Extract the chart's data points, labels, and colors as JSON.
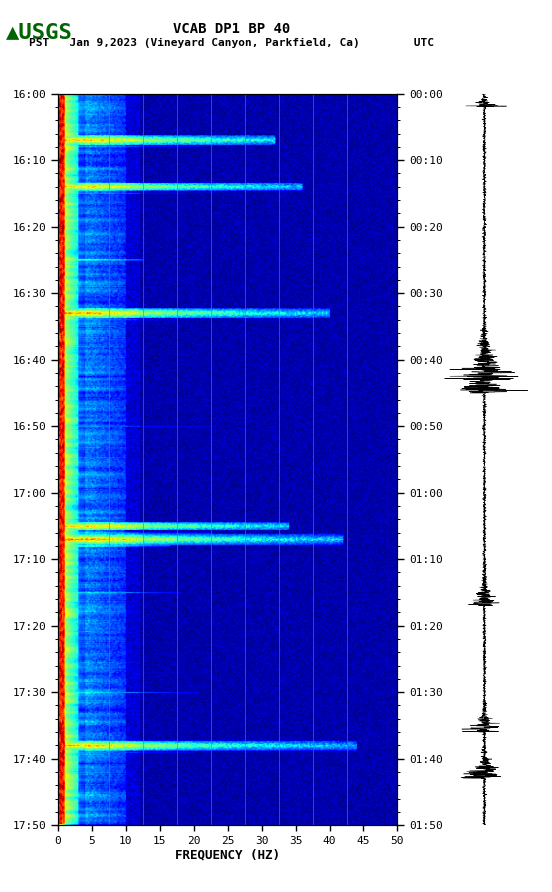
{
  "title_line1": "VCAB DP1 BP 40",
  "title_line2": "PST   Jan 9,2023 (Vineyard Canyon, Parkfield, Ca)        UTC",
  "xlabel": "FREQUENCY (HZ)",
  "freq_min": 0,
  "freq_max": 50,
  "freq_ticks": [
    0,
    5,
    10,
    15,
    20,
    25,
    30,
    35,
    40,
    45,
    50
  ],
  "pst_ticks": [
    "16:00",
    "16:10",
    "16:20",
    "16:30",
    "16:40",
    "16:50",
    "17:00",
    "17:10",
    "17:20",
    "17:30",
    "17:40",
    "17:50"
  ],
  "utc_ticks": [
    "00:00",
    "00:10",
    "00:20",
    "00:30",
    "00:40",
    "00:50",
    "01:00",
    "01:10",
    "01:20",
    "01:30",
    "01:40",
    "01:50"
  ],
  "vertical_lines_freq": [
    7.5,
    12.5,
    17.5,
    22.5,
    27.5,
    32.5,
    37.5,
    42.5
  ],
  "background_color": "#ffffff",
  "title_fontsize": 10,
  "tick_fontsize": 8,
  "label_fontsize": 9,
  "usgs_color": "#006400",
  "vline_color": "#8B7355",
  "seed": 42,
  "fig_width": 5.52,
  "fig_height": 8.92
}
